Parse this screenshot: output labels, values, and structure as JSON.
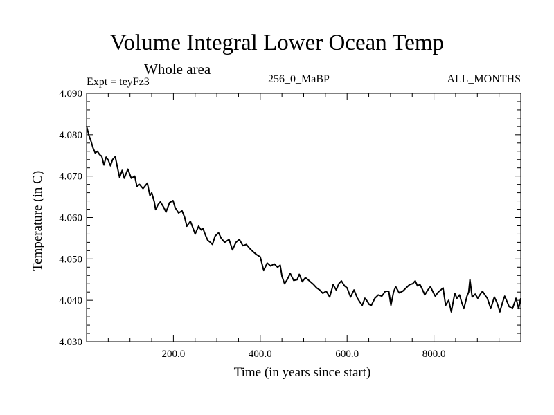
{
  "header": {
    "title": "Volume Integral Lower Ocean Temp",
    "subtitle": "Whole area",
    "expt_label": "Expt = teyFz3",
    "period_label": "256_0_MaBP",
    "months_label": "ALL_MONTHS"
  },
  "chart_data": {
    "type": "line",
    "title": "Volume Integral Lower Ocean Temp",
    "subtitle": "Whole area",
    "xlabel": "Time (in years since start)",
    "ylabel": "Temperature (in C)",
    "xlim": [
      0,
      1000
    ],
    "ylim": [
      4.03,
      4.09
    ],
    "xticks": [
      200,
      400,
      600,
      800
    ],
    "xtick_labels": [
      "200.0",
      "400.0",
      "600.0",
      "800.0"
    ],
    "x_minor_step": 50,
    "yticks": [
      4.03,
      4.04,
      4.05,
      4.06,
      4.07,
      4.08,
      4.09
    ],
    "ytick_labels": [
      "4.030",
      "4.040",
      "4.050",
      "4.060",
      "4.070",
      "4.080",
      "4.090"
    ],
    "y_minor_step": 0.002,
    "grid": false,
    "line_color": "#000000",
    "series": [
      {
        "name": "teyFz3",
        "x": [
          0,
          5,
          10,
          15,
          20,
          25,
          30,
          35,
          40,
          45,
          50,
          55,
          60,
          66,
          71,
          76,
          82,
          87,
          95,
          103,
          111,
          116,
          122,
          130,
          140,
          146,
          150,
          156,
          159,
          165,
          170,
          178,
          183,
          191,
          199,
          204,
          212,
          220,
          226,
          231,
          239,
          245,
          250,
          258,
          264,
          268,
          274,
          279,
          285,
          290,
          296,
          304,
          310,
          318,
          328,
          336,
          344,
          352,
          360,
          368,
          376,
          384,
          392,
          400,
          408,
          416,
          424,
          432,
          440,
          446,
          450,
          456,
          462,
          469,
          477,
          485,
          490,
          497,
          504,
          512,
          523,
          530,
          537,
          544,
          552,
          560,
          568,
          575,
          581,
          587,
          594,
          600,
          608,
          616,
          624,
          630,
          635,
          641,
          645,
          651,
          656,
          664,
          672,
          680,
          688,
          696,
          701,
          707,
          712,
          720,
          728,
          736,
          744,
          751,
          757,
          762,
          768,
          774,
          779,
          786,
          792,
          798,
          803,
          810,
          816,
          821,
          827,
          834,
          840,
          848,
          853,
          859,
          864,
          869,
          876,
          880,
          883,
          888,
          895,
          901,
          907,
          912,
          918,
          923,
          931,
          939,
          945,
          952,
          958,
          963,
          968,
          973,
          981,
          989,
          995,
          1000
        ],
        "y": [
          4.0821,
          4.08,
          4.0785,
          4.0768,
          4.0756,
          4.076,
          4.0752,
          4.0748,
          4.0727,
          4.0746,
          4.0739,
          4.0725,
          4.074,
          4.0747,
          4.0722,
          4.0697,
          4.0714,
          4.0695,
          4.0717,
          4.0695,
          4.07,
          4.0675,
          4.068,
          4.067,
          4.0683,
          4.0653,
          4.066,
          4.0638,
          4.0619,
          4.0632,
          4.0638,
          4.0624,
          4.0613,
          4.0636,
          4.0641,
          4.0624,
          4.0611,
          4.0616,
          4.06,
          4.0579,
          4.0591,
          4.0575,
          4.056,
          4.0579,
          4.057,
          4.0574,
          4.0557,
          4.0545,
          4.054,
          4.0535,
          4.0555,
          4.0563,
          4.055,
          4.054,
          4.0547,
          4.0522,
          4.054,
          4.0547,
          4.0532,
          4.0535,
          4.0525,
          4.0517,
          4.051,
          4.0505,
          4.0472,
          4.049,
          4.0483,
          4.0488,
          4.048,
          4.0485,
          4.0458,
          4.044,
          4.045,
          4.0465,
          4.0448,
          4.045,
          4.0463,
          4.0445,
          4.0455,
          4.0448,
          4.0438,
          4.043,
          4.0425,
          4.0417,
          4.0422,
          4.0408,
          4.0438,
          4.0425,
          4.044,
          4.0447,
          4.0435,
          4.043,
          4.0408,
          4.0425,
          4.0405,
          4.0395,
          4.0388,
          4.0405,
          4.04,
          4.039,
          4.0388,
          4.0405,
          4.0413,
          4.041,
          4.0422,
          4.0422,
          4.0388,
          4.042,
          4.0433,
          4.0418,
          4.0422,
          4.043,
          4.0438,
          4.044,
          4.0447,
          4.0435,
          4.0438,
          4.0425,
          4.0413,
          4.0425,
          4.0433,
          4.042,
          4.041,
          4.042,
          4.0425,
          4.043,
          4.0388,
          4.04,
          4.0372,
          4.0417,
          4.0405,
          4.0413,
          4.0395,
          4.038,
          4.041,
          4.042,
          4.045,
          4.0408,
          4.0415,
          4.0405,
          4.0415,
          4.0422,
          4.0412,
          4.0405,
          4.038,
          4.0408,
          4.0395,
          4.0372,
          4.0395,
          4.041,
          4.0398,
          4.0385,
          4.038,
          4.0405,
          4.038,
          4.0405
        ]
      }
    ]
  }
}
